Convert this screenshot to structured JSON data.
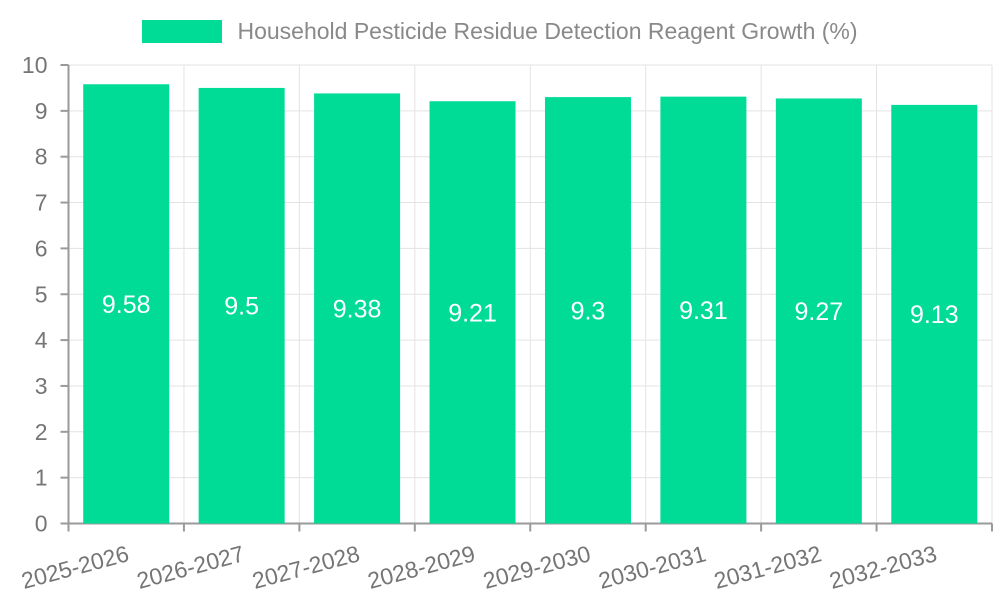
{
  "legend": {
    "label": "Household Pesticide Residue Detection Reagent Growth (%)"
  },
  "colors": {
    "bar": "#00DC96",
    "grid": "#e3e3e3",
    "axis": "#9a9a9a",
    "axis_label": "#757575",
    "legend_text": "#898989",
    "value_label": "#ffffff",
    "background": "#ffffff"
  },
  "chart_data": {
    "type": "bar",
    "title": "Household Pesticide Residue Detection Reagent Growth (%)",
    "categories": [
      "2025-2026",
      "2026-2027",
      "2027-2028",
      "2028-2029",
      "2029-2030",
      "2030-2031",
      "2031-2032",
      "2032-2033"
    ],
    "values": [
      9.58,
      9.5,
      9.38,
      9.21,
      9.3,
      9.31,
      9.27,
      9.13
    ],
    "value_labels": [
      "9.58",
      "9.5",
      "9.38",
      "9.21",
      "9.3",
      "9.31",
      "9.27",
      "9.13"
    ],
    "xlabel": "",
    "ylabel": "",
    "ylim": [
      0,
      10
    ],
    "yticks": [
      0,
      1,
      2,
      3,
      4,
      5,
      6,
      7,
      8,
      9,
      10
    ],
    "grid": true,
    "legend_position": "top",
    "x_label_rotation_deg": -15
  }
}
